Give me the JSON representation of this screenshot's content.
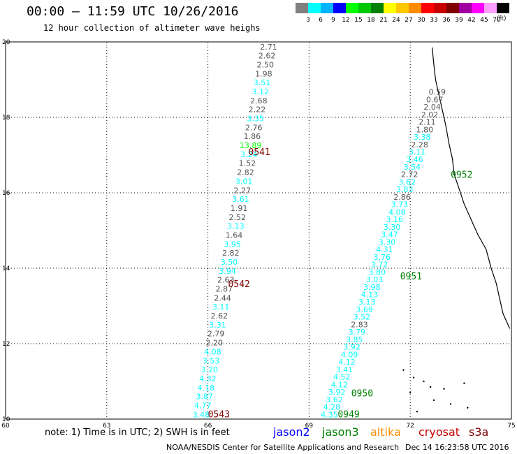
{
  "header": {
    "title": "00:00 – 11:59 UTC 10/26/2016",
    "subtitle": "12 hour collection of altimeter wave heighs"
  },
  "legend": {
    "unit": "(ft)",
    "bins": [
      {
        "label": "3",
        "color": "#808080"
      },
      {
        "label": "6",
        "color": "#00ffff"
      },
      {
        "label": "9",
        "color": "#00b4ff"
      },
      {
        "label": "12",
        "color": "#0000ff"
      },
      {
        "label": "15",
        "color": "#00ff00"
      },
      {
        "label": "18",
        "color": "#00c800"
      },
      {
        "label": "21",
        "color": "#008000"
      },
      {
        "label": "24",
        "color": "#ffff00"
      },
      {
        "label": "27",
        "color": "#ffc800"
      },
      {
        "label": "30",
        "color": "#ff8c00"
      },
      {
        "label": "33",
        "color": "#ff0000"
      },
      {
        "label": "36",
        "color": "#c80000"
      },
      {
        "label": "39",
        "color": "#800000"
      },
      {
        "label": "42",
        "color": "#a000a0"
      },
      {
        "label": "45",
        "color": "#ff00ff"
      },
      {
        "label": "70",
        "color": "#ffa0ff"
      },
      {
        "label": "",
        "color": "#000000"
      }
    ]
  },
  "map": {
    "lon_range": [
      60,
      75
    ],
    "lat_range": [
      10,
      20
    ],
    "x_ticks": [
      "60",
      "63",
      "66",
      "69",
      "72",
      "75"
    ],
    "y_ticks": [
      "10",
      "12",
      "14",
      "16",
      "18",
      "20"
    ],
    "grid": true,
    "grid_style": "dotted"
  },
  "passes": [
    {
      "label": "0541",
      "time_color": "#800000",
      "lon": 67.2,
      "lat": 17.0
    },
    {
      "label": "0542",
      "time_color": "#800000",
      "lon": 66.6,
      "lat": 13.5
    },
    {
      "label": "0543",
      "time_color": "#800000",
      "lon": 66.0,
      "lat": 10.05
    },
    {
      "label": "0952",
      "time_color": "#008000",
      "lon": 73.2,
      "lat": 16.4
    },
    {
      "label": "0951",
      "time_color": "#008000",
      "lon": 71.7,
      "lat": 13.7
    },
    {
      "label": "0950",
      "time_color": "#008000",
      "lon": 70.25,
      "lat": 10.6
    },
    {
      "label": "0949",
      "time_color": "#008000",
      "lon": 69.85,
      "lat": 10.05
    }
  ],
  "tracks": [
    {
      "name": "track-a",
      "start": {
        "lon": 67.8,
        "lat": 19.8
      },
      "end": {
        "lon": 65.8,
        "lat": 10.05
      },
      "values": [
        "2.71",
        "2.62",
        "2.50",
        "1.98",
        "3.51",
        "3.12",
        "2.68",
        "2.22",
        "3.35",
        "2.76",
        "1.86",
        "13.89",
        "3.24",
        "1.52",
        "2.82",
        "3.01",
        "2.27",
        "3.61",
        "1.91",
        "2.52",
        "3.13",
        "1.64",
        "3.95",
        "2.82",
        "3.50",
        "3.94",
        "2.63",
        "2.87",
        "2.44",
        "3.11",
        "2.62",
        "3.31",
        "2.79",
        "2.20",
        "4.08",
        "3.53",
        "3.20",
        "4.32",
        "4.18",
        "3.87",
        "4.77",
        "3.48"
      ]
    },
    {
      "name": "track-b",
      "start": {
        "lon": 72.8,
        "lat": 18.6
      },
      "end": {
        "lon": 69.6,
        "lat": 10.05
      },
      "values": [
        "0.59",
        "0.67",
        "2.04",
        "2.02",
        "2.11",
        "1.80",
        "3.38",
        "2.28",
        "3.11",
        "3.46",
        "3.54",
        "2.72",
        "3.62",
        "3.83",
        "2.86",
        "3.73",
        "4.08",
        "3.16",
        "3.30",
        "3.47",
        "3.30",
        "4.31",
        "3.76",
        "3.72",
        "3.80",
        "3.03",
        "3.98",
        "4.13",
        "3.13",
        "3.69",
        "3.52",
        "2.83",
        "3.79",
        "3.85",
        "3.92",
        "4.09",
        "4.12",
        "3.41",
        "4.52",
        "4.12",
        "3.92",
        "3.62",
        "4.28",
        "4.35"
      ]
    }
  ],
  "footer": {
    "note": "note: 1) Time is in UTC; 2) SWH is in feet",
    "satellites": [
      {
        "name": "jason2",
        "color": "#0000ff"
      },
      {
        "name": "jason3",
        "color": "#008000"
      },
      {
        "name": "altika",
        "color": "#ff8c00"
      },
      {
        "name": "cryosat",
        "color": "#c80000"
      },
      {
        "name": "s3a",
        "color": "#800000"
      }
    ],
    "credit": "NOAA/NESDIS Center for Satellite Applications and Research",
    "timestamp": "Dec 14 16:23:58 UTC 2016"
  }
}
